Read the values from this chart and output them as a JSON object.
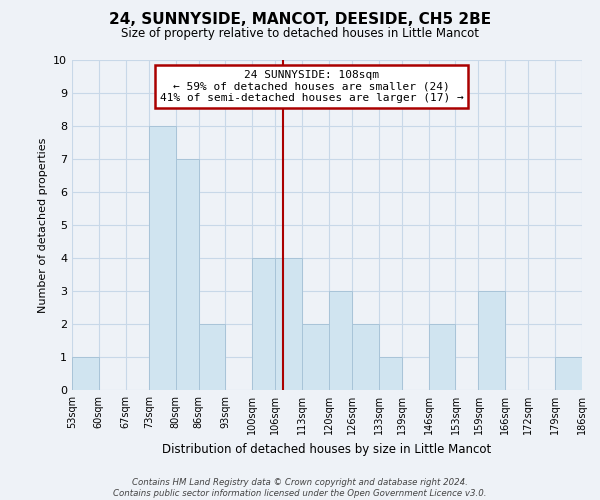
{
  "title": "24, SUNNYSIDE, MANCOT, DEESIDE, CH5 2BE",
  "subtitle": "Size of property relative to detached houses in Little Mancot",
  "xlabel": "Distribution of detached houses by size in Little Mancot",
  "ylabel": "Number of detached properties",
  "bar_color": "#d0e4f0",
  "bar_edge_color": "#a8c4d8",
  "background_color": "#eef2f7",
  "bin_edges": [
    53,
    60,
    67,
    73,
    80,
    86,
    93,
    100,
    106,
    113,
    120,
    126,
    133,
    139,
    146,
    153,
    159,
    166,
    172,
    179,
    186
  ],
  "bin_labels": [
    "53sqm",
    "60sqm",
    "67sqm",
    "73sqm",
    "80sqm",
    "86sqm",
    "93sqm",
    "100sqm",
    "106sqm",
    "113sqm",
    "120sqm",
    "126sqm",
    "133sqm",
    "139sqm",
    "146sqm",
    "153sqm",
    "159sqm",
    "166sqm",
    "172sqm",
    "179sqm",
    "186sqm"
  ],
  "counts": [
    1,
    0,
    0,
    8,
    7,
    2,
    0,
    4,
    4,
    2,
    3,
    2,
    1,
    0,
    2,
    0,
    3,
    0,
    0,
    1
  ],
  "vline_x": 108,
  "vline_color": "#aa0000",
  "annotation_title": "24 SUNNYSIDE: 108sqm",
  "annotation_line1": "← 59% of detached houses are smaller (24)",
  "annotation_line2": "41% of semi-detached houses are larger (17) →",
  "annotation_box_color": "#ffffff",
  "annotation_box_edge": "#aa0000",
  "ylim": [
    0,
    10
  ],
  "yticks": [
    0,
    1,
    2,
    3,
    4,
    5,
    6,
    7,
    8,
    9,
    10
  ],
  "footer_line1": "Contains HM Land Registry data © Crown copyright and database right 2024.",
  "footer_line2": "Contains public sector information licensed under the Open Government Licence v3.0.",
  "grid_color": "#c8d8e8"
}
